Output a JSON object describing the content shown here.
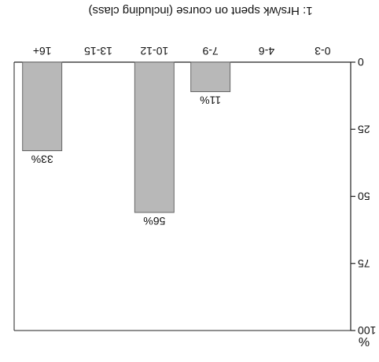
{
  "chart_data": {
    "type": "bar",
    "title": "1: Hrs/wk spent on course (including class)",
    "ylabel": "%",
    "xlabel": "",
    "categories": [
      "0-3",
      "4-6",
      "7-9",
      "10-12",
      "13-15",
      "16+"
    ],
    "values": [
      0,
      0,
      11,
      56,
      0,
      33
    ],
    "data_labels": [
      "",
      "",
      "11%",
      "56%",
      "",
      "33%"
    ],
    "yticks": [
      0,
      25,
      50,
      75,
      100
    ],
    "ylim": [
      0,
      100
    ],
    "grid": false,
    "orientation": "rotated 180 degrees",
    "colors": {
      "bar_fill": "#b8b8b8",
      "bar_stroke": "#666666",
      "axis": "#222222"
    }
  }
}
